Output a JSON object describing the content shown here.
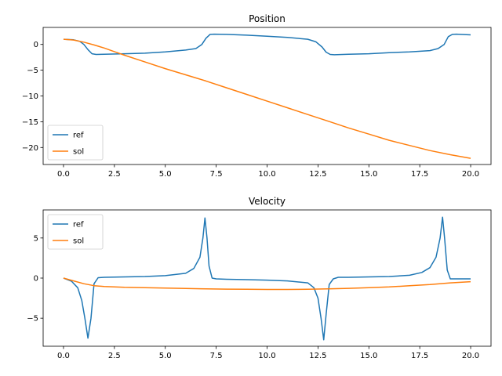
{
  "chart_data": [
    {
      "type": "line",
      "title": "Position",
      "xlim": [
        -1.0,
        21.0
      ],
      "ylim": [
        -23.3,
        3.3
      ],
      "xticks": [
        0.0,
        2.5,
        5.0,
        7.5,
        10.0,
        12.5,
        15.0,
        17.5,
        20.0
      ],
      "xtick_labels": [
        "0.0",
        "2.5",
        "5.0",
        "7.5",
        "10.0",
        "12.5",
        "15.0",
        "17.5",
        "20.0"
      ],
      "yticks": [
        0,
        -5,
        -10,
        -15,
        -20
      ],
      "ytick_labels": [
        "0",
        "−5",
        "−10",
        "−15",
        "−20"
      ],
      "grid": false,
      "legend_position": "lower-left",
      "series": [
        {
          "name": "ref",
          "color": "#1f77b4",
          "x": [
            0,
            0.5,
            0.8,
            1.0,
            1.2,
            1.4,
            1.6,
            2.0,
            3.0,
            4.0,
            5.0,
            6.0,
            6.5,
            6.8,
            7.0,
            7.2,
            7.4,
            8.0,
            9.0,
            10.0,
            11.0,
            12.0,
            12.4,
            12.7,
            12.9,
            13.1,
            13.3,
            14.0,
            15.0,
            16.0,
            17.0,
            18.0,
            18.4,
            18.7,
            18.9,
            19.1,
            19.3,
            20.0
          ],
          "y": [
            1.0,
            0.9,
            0.6,
            0.0,
            -1.0,
            -1.8,
            -1.95,
            -1.9,
            -1.8,
            -1.7,
            -1.45,
            -1.1,
            -0.8,
            0.0,
            1.2,
            1.95,
            2.0,
            1.95,
            1.8,
            1.6,
            1.35,
            1.0,
            0.5,
            -0.5,
            -1.5,
            -1.95,
            -2.0,
            -1.9,
            -1.8,
            -1.6,
            -1.45,
            -1.2,
            -0.8,
            0.0,
            1.5,
            1.95,
            2.0,
            1.85
          ]
        },
        {
          "name": "sol",
          "color": "#ff7f0e",
          "x": [
            0,
            0.5,
            1.0,
            1.5,
            2.0,
            2.5,
            3.0,
            4.0,
            5.0,
            6.0,
            7.0,
            8.0,
            9.0,
            10.0,
            11.0,
            12.0,
            13.0,
            14.0,
            15.0,
            16.0,
            17.0,
            18.0,
            19.0,
            20.0
          ],
          "y": [
            1.0,
            0.85,
            0.45,
            -0.1,
            -0.7,
            -1.4,
            -2.1,
            -3.4,
            -4.7,
            -5.9,
            -7.1,
            -8.4,
            -9.7,
            -11.0,
            -12.3,
            -13.6,
            -14.9,
            -16.2,
            -17.4,
            -18.6,
            -19.6,
            -20.6,
            -21.4,
            -22.1
          ]
        }
      ]
    },
    {
      "type": "line",
      "title": "Velocity",
      "xlim": [
        -1.0,
        21.0
      ],
      "ylim": [
        -8.5,
        8.5
      ],
      "xticks": [
        0.0,
        2.5,
        5.0,
        7.5,
        10.0,
        12.5,
        15.0,
        17.5,
        20.0
      ],
      "xtick_labels": [
        "0.0",
        "2.5",
        "5.0",
        "7.5",
        "10.0",
        "12.5",
        "15.0",
        "17.5",
        "20.0"
      ],
      "yticks": [
        5,
        0,
        -5
      ],
      "ytick_labels": [
        "5",
        "0",
        "−5"
      ],
      "grid": false,
      "legend_position": "upper-left",
      "series": [
        {
          "name": "ref",
          "color": "#1f77b4",
          "x": [
            0,
            0.4,
            0.7,
            0.9,
            1.05,
            1.2,
            1.35,
            1.5,
            1.7,
            2.0,
            3.0,
            4.0,
            5.0,
            6.0,
            6.4,
            6.7,
            6.85,
            6.95,
            7.05,
            7.15,
            7.3,
            7.5,
            8.0,
            9.0,
            10.0,
            11.0,
            12.0,
            12.3,
            12.5,
            12.65,
            12.78,
            12.9,
            13.05,
            13.25,
            13.5,
            14.0,
            15.0,
            16.0,
            17.0,
            17.6,
            18.0,
            18.3,
            18.5,
            18.62,
            18.72,
            18.85,
            19.0,
            19.2,
            20.0
          ],
          "y": [
            0.0,
            -0.4,
            -1.2,
            -2.8,
            -5.0,
            -7.5,
            -5.0,
            -0.7,
            0.05,
            0.1,
            0.15,
            0.2,
            0.3,
            0.6,
            1.2,
            2.6,
            5.0,
            7.5,
            5.0,
            1.5,
            0.0,
            -0.1,
            -0.15,
            -0.2,
            -0.25,
            -0.35,
            -0.6,
            -1.2,
            -2.5,
            -5.0,
            -7.7,
            -4.5,
            -0.8,
            -0.1,
            0.1,
            0.1,
            0.15,
            0.2,
            0.35,
            0.7,
            1.3,
            2.6,
            5.0,
            7.6,
            5.0,
            1.0,
            -0.1,
            -0.1,
            -0.1
          ]
        },
        {
          "name": "sol",
          "color": "#ff7f0e",
          "x": [
            0,
            0.5,
            1.0,
            1.5,
            2.0,
            3.0,
            4.0,
            5.0,
            6.0,
            7.0,
            8.0,
            9.0,
            10.0,
            11.0,
            12.0,
            13.0,
            14.0,
            15.0,
            16.0,
            17.0,
            18.0,
            19.0,
            20.0
          ],
          "y": [
            0.0,
            -0.35,
            -0.7,
            -0.95,
            -1.05,
            -1.15,
            -1.2,
            -1.25,
            -1.3,
            -1.35,
            -1.38,
            -1.4,
            -1.42,
            -1.42,
            -1.4,
            -1.35,
            -1.28,
            -1.2,
            -1.1,
            -0.95,
            -0.8,
            -0.6,
            -0.45
          ]
        }
      ]
    }
  ]
}
